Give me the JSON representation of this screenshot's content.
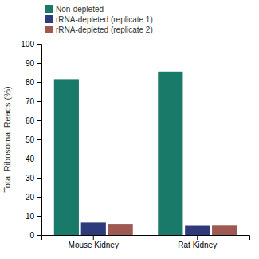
{
  "chart_data": {
    "type": "bar",
    "categories": [
      "Mouse Kidney",
      "Rat Kidney"
    ],
    "series": [
      {
        "name": "Non-depleted",
        "color": "#1a7a6a",
        "values": [
          81.5,
          85.5
        ]
      },
      {
        "name": "rRNA-depleted (replicate 1)",
        "color": "#2d3b7a",
        "values": [
          6.5,
          5.2
        ]
      },
      {
        "name": "rRNA-depleted (replicate 2)",
        "color": "#9e5a52",
        "values": [
          5.8,
          5.3
        ]
      }
    ],
    "ylabel": "Total Ribosomal Reads (%)",
    "ylim": [
      0,
      100
    ],
    "yticks": [
      0,
      10,
      20,
      30,
      40,
      50,
      60,
      70,
      80,
      90,
      100
    ],
    "legend": "upper-left",
    "grid": false
  }
}
